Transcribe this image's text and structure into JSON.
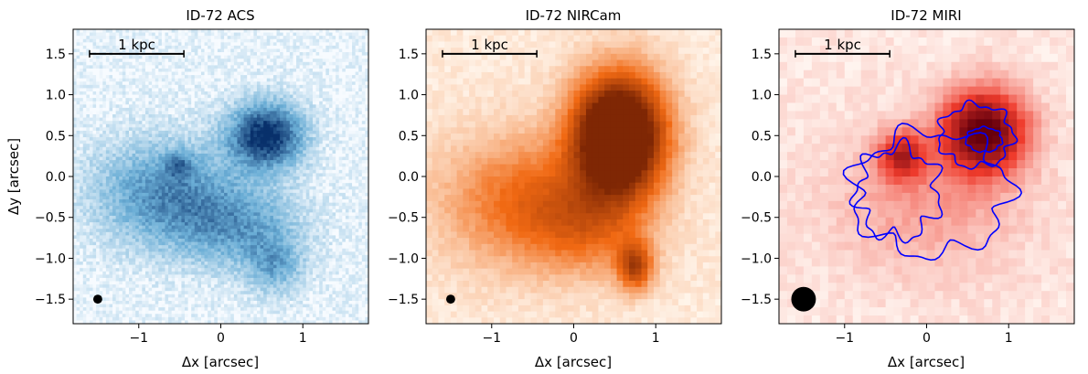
{
  "chart_data": [
    {
      "type": "heatmap",
      "title": "ID-72 ACS",
      "xlabel": "Δx [arcsec]",
      "ylabel": "Δy [arcsec]",
      "xlim": [
        -1.8,
        1.8
      ],
      "ylim": [
        -1.8,
        1.8
      ],
      "xticks": [
        -1,
        0,
        1
      ],
      "yticks": [
        -1.5,
        -1.0,
        -0.5,
        0.0,
        0.5,
        1.0,
        1.5
      ],
      "colormap": "Blues",
      "colors": {
        "low": "#f7fbff",
        "mid": "#6baed6",
        "high": "#08306b"
      },
      "scalebar": {
        "label": "1 kpc",
        "x_start": -1.6,
        "x_end": -0.45,
        "y": 1.5
      },
      "beam": {
        "x": -1.5,
        "y": -1.5,
        "diameter_arcsec": 0.11
      },
      "grid": false
    },
    {
      "type": "heatmap",
      "title": "ID-72 NIRCam",
      "xlabel": "Δx [arcsec]",
      "ylabel": "",
      "xlim": [
        -1.8,
        1.8
      ],
      "ylim": [
        -1.8,
        1.8
      ],
      "xticks": [
        -1,
        0,
        1
      ],
      "yticks": [
        -1.5,
        -1.0,
        -0.5,
        0.0,
        0.5,
        1.0,
        1.5
      ],
      "colormap": "Oranges",
      "colors": {
        "low": "#fff5eb",
        "mid": "#f16913",
        "high": "#7f2704"
      },
      "scalebar": {
        "label": "1 kpc",
        "x_start": -1.6,
        "x_end": -0.45,
        "y": 1.5
      },
      "beam": {
        "x": -1.5,
        "y": -1.5,
        "diameter_arcsec": 0.11
      },
      "grid": false
    },
    {
      "type": "heatmap",
      "title": "ID-72 MIRI",
      "xlabel": "Δx [arcsec]",
      "ylabel": "",
      "xlim": [
        -1.8,
        1.8
      ],
      "ylim": [
        -1.8,
        1.8
      ],
      "xticks": [
        -1,
        0,
        1
      ],
      "yticks": [
        -1.5,
        -1.0,
        -0.5,
        0.0,
        0.5,
        1.0,
        1.5
      ],
      "colormap": "Reds",
      "colors": {
        "low": "#fff5f0",
        "mid": "#ef3b2c",
        "high": "#67000d",
        "contour": "#0000ff"
      },
      "scalebar": {
        "label": "1 kpc",
        "x_start": -1.6,
        "x_end": -0.45,
        "y": 1.5
      },
      "beam": {
        "x": -1.5,
        "y": -1.5,
        "diameter_arcsec": 0.3
      },
      "contour": {
        "color": "blue"
      },
      "grid": false
    }
  ]
}
